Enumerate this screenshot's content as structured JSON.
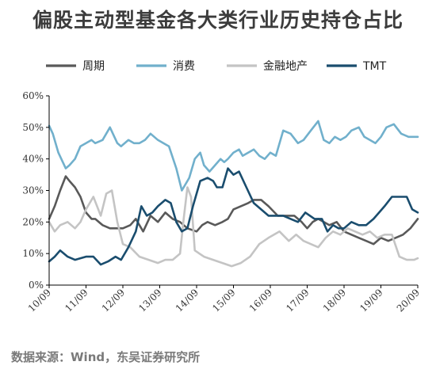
{
  "header": {
    "title": "偏股主动型基金各大类行业历史持仓占比"
  },
  "footer": {
    "source": "数据来源：Wind，东吴证券研究所"
  },
  "chart_data": {
    "type": "line",
    "title": "偏股主动型基金各大类行业历史持仓占比",
    "xlabel": "",
    "ylabel": "",
    "ylim": [
      0,
      60
    ],
    "yticks": [
      "0%",
      "10%",
      "20%",
      "30%",
      "40%",
      "50%",
      "60%"
    ],
    "categories": [
      "10/09",
      "11/09",
      "12/09",
      "13/09",
      "14/09",
      "15/09",
      "16/09",
      "17/09",
      "18/09",
      "19/09",
      "20/09"
    ],
    "x_range": [
      2010.0,
      2020.0
    ],
    "grid": false,
    "legend_position": "top",
    "series": [
      {
        "name": "周期",
        "color": "#595959",
        "x": [
          2010.0,
          2010.15,
          2010.3,
          2010.45,
          2010.55,
          2010.7,
          2010.85,
          2011.0,
          2011.15,
          2011.25,
          2011.45,
          2011.65,
          2011.85,
          2012.0,
          2012.2,
          2012.35,
          2012.55,
          2012.75,
          2012.95,
          2013.15,
          2013.35,
          2013.55,
          2013.75,
          2014.0,
          2014.15,
          2014.3,
          2014.5,
          2014.7,
          2014.85,
          2015.0,
          2015.2,
          2015.4,
          2015.55,
          2015.75,
          2015.95,
          2016.2,
          2016.45,
          2016.65,
          2016.85,
          2017.0,
          2017.15,
          2017.3,
          2017.45,
          2017.6,
          2017.8,
          2018.0,
          2018.2,
          2018.4,
          2018.6,
          2018.8,
          2019.0,
          2019.2,
          2019.4,
          2019.6,
          2019.8,
          2020.0
        ],
        "values": [
          21,
          25,
          30,
          34.5,
          33,
          31,
          28,
          23,
          21,
          21,
          19,
          18,
          18,
          18,
          19,
          21,
          17,
          22,
          20,
          23,
          21,
          20,
          18,
          17,
          19,
          20,
          19,
          20,
          21,
          24,
          25,
          26,
          27,
          27,
          25,
          22,
          22,
          22,
          20,
          18,
          20,
          21,
          20,
          19,
          20,
          17,
          16,
          15,
          14,
          13,
          15,
          14,
          15,
          16,
          18,
          21
        ]
      },
      {
        "name": "消费",
        "color": "#71b0cc",
        "x": [
          2010.0,
          2010.1,
          2010.25,
          2010.45,
          2010.55,
          2010.7,
          2010.85,
          2011.0,
          2011.15,
          2011.25,
          2011.45,
          2011.65,
          2011.85,
          2011.95,
          2012.15,
          2012.3,
          2012.45,
          2012.6,
          2012.75,
          2012.95,
          2013.1,
          2013.25,
          2013.45,
          2013.6,
          2013.8,
          2013.95,
          2014.1,
          2014.2,
          2014.35,
          2014.5,
          2014.65,
          2014.75,
          2014.85,
          2015.0,
          2015.15,
          2015.25,
          2015.4,
          2015.55,
          2015.7,
          2015.85,
          2016.0,
          2016.15,
          2016.35,
          2016.55,
          2016.75,
          2016.9,
          2017.1,
          2017.3,
          2017.45,
          2017.6,
          2017.75,
          2017.9,
          2018.05,
          2018.2,
          2018.4,
          2018.55,
          2018.7,
          2018.85,
          2019.0,
          2019.15,
          2019.35,
          2019.55,
          2019.75,
          2020.0
        ],
        "values": [
          50.5,
          48,
          42,
          37,
          38,
          40,
          44,
          45,
          46,
          45,
          46,
          50,
          45,
          44,
          46,
          45,
          45,
          46,
          48,
          46,
          45,
          44,
          37,
          30,
          34,
          40,
          42,
          38,
          36,
          38,
          40,
          39,
          40,
          42,
          43,
          41,
          42,
          43,
          41,
          40,
          42,
          41,
          49,
          48,
          45,
          46,
          49,
          52,
          46,
          45,
          47,
          46,
          47,
          49,
          50,
          47,
          46,
          45,
          47,
          50,
          51,
          48,
          47,
          47
        ]
      },
      {
        "name": "金融地产",
        "color": "#c4c4c4",
        "x": [
          2010.0,
          2010.15,
          2010.3,
          2010.5,
          2010.7,
          2010.85,
          2011.0,
          2011.2,
          2011.4,
          2011.55,
          2011.7,
          2011.85,
          2012.0,
          2012.2,
          2012.45,
          2012.7,
          2012.95,
          2013.15,
          2013.35,
          2013.55,
          2013.65,
          2013.75,
          2013.85,
          2013.95,
          2014.2,
          2014.45,
          2014.7,
          2014.95,
          2015.2,
          2015.45,
          2015.7,
          2015.95,
          2016.25,
          2016.5,
          2016.7,
          2016.9,
          2017.1,
          2017.3,
          2017.5,
          2017.7,
          2017.9,
          2018.1,
          2018.3,
          2018.5,
          2018.7,
          2018.9,
          2019.1,
          2019.3,
          2019.5,
          2019.7,
          2019.9,
          2020.0
        ],
        "values": [
          20,
          17,
          19,
          20,
          18,
          20,
          24,
          28,
          22,
          29,
          30,
          20,
          13,
          12,
          9,
          8,
          7,
          8,
          8,
          10,
          21,
          31,
          28,
          11,
          9,
          8,
          7,
          6,
          7,
          9,
          13,
          15,
          17,
          14,
          16,
          14,
          13,
          12,
          15,
          17,
          16,
          18,
          17,
          16,
          17,
          15,
          16,
          16,
          9,
          8,
          8,
          8.5
        ]
      },
      {
        "name": "TMT",
        "color": "#1a4d6e",
        "x": [
          2010.0,
          2010.15,
          2010.3,
          2010.5,
          2010.7,
          2010.85,
          2011.0,
          2011.2,
          2011.4,
          2011.6,
          2011.8,
          2011.95,
          2012.15,
          2012.35,
          2012.5,
          2012.65,
          2012.8,
          2012.95,
          2013.15,
          2013.3,
          2013.45,
          2013.6,
          2013.75,
          2013.9,
          2014.1,
          2014.3,
          2014.45,
          2014.55,
          2014.7,
          2014.85,
          2015.0,
          2015.15,
          2015.35,
          2015.55,
          2015.75,
          2015.95,
          2016.15,
          2016.35,
          2016.55,
          2016.75,
          2016.95,
          2017.2,
          2017.4,
          2017.55,
          2017.7,
          2017.85,
          2018.0,
          2018.2,
          2018.4,
          2018.6,
          2018.8,
          2018.95,
          2019.1,
          2019.3,
          2019.5,
          2019.7,
          2019.85,
          2020.0
        ],
        "values": [
          7.5,
          9,
          11,
          9,
          8,
          8.5,
          9,
          9,
          6.5,
          7.5,
          9,
          8,
          12,
          17,
          25,
          22,
          23,
          25,
          27,
          26,
          20,
          17,
          18,
          25,
          33,
          34,
          33,
          31,
          31,
          37,
          35,
          36,
          31,
          26,
          24,
          22,
          22,
          22,
          21,
          20,
          23,
          21,
          21,
          17,
          19,
          18,
          18,
          20,
          19,
          19,
          21,
          23,
          25,
          28,
          28,
          28,
          24,
          23
        ]
      }
    ]
  }
}
